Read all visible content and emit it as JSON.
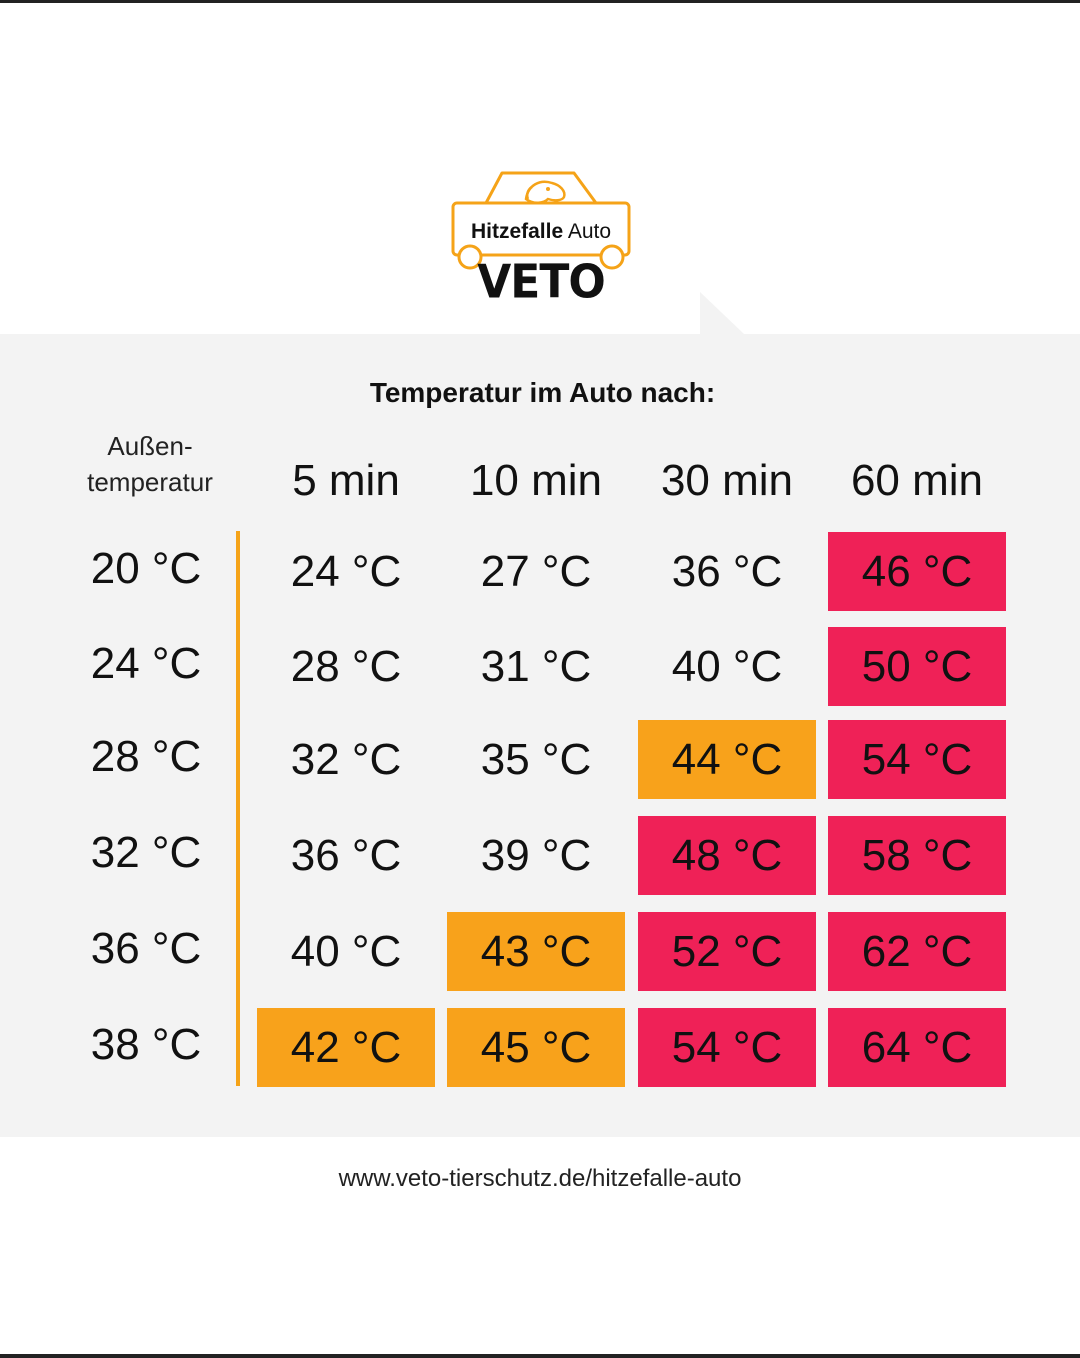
{
  "logo": {
    "line1_bold": "Hitzefalle",
    "line1_regular": "Auto",
    "brand": "VETO",
    "icon": "car-with-dog-icon",
    "accent_color": "#f5a318"
  },
  "table": {
    "title": "Temperatur im Auto nach:",
    "outside_label_line1": "Außen-",
    "outside_label_line2": "temperatur",
    "columns": [
      "5 min",
      "10 min",
      "30 min",
      "60 min"
    ],
    "rows": [
      {
        "outside": "20 °C",
        "values": [
          "24 °C",
          "27 °C",
          "36 °C",
          "46 °C"
        ],
        "levels": [
          "normal",
          "normal",
          "normal",
          "danger"
        ]
      },
      {
        "outside": "24 °C",
        "values": [
          "28 °C",
          "31 °C",
          "40 °C",
          "50 °C"
        ],
        "levels": [
          "normal",
          "normal",
          "normal",
          "danger"
        ]
      },
      {
        "outside": "28 °C",
        "values": [
          "32 °C",
          "35 °C",
          "44 °C",
          "54 °C"
        ],
        "levels": [
          "normal",
          "normal",
          "warn",
          "danger"
        ]
      },
      {
        "outside": "32 °C",
        "values": [
          "36 °C",
          "39 °C",
          "48 °C",
          "58 °C"
        ],
        "levels": [
          "normal",
          "normal",
          "danger",
          "danger"
        ]
      },
      {
        "outside": "36 °C",
        "values": [
          "40 °C",
          "43 °C",
          "52 °C",
          "62 °C"
        ],
        "levels": [
          "normal",
          "warn",
          "danger",
          "danger"
        ]
      },
      {
        "outside": "38 °C",
        "values": [
          "42 °C",
          "45 °C",
          "54 °C",
          "64 °C"
        ],
        "levels": [
          "warn",
          "warn",
          "danger",
          "danger"
        ]
      }
    ],
    "colors": {
      "warn": "#f8a21b",
      "danger": "#ef2157",
      "divider": "#f5a318"
    }
  },
  "footer": {
    "url": "www.veto-tierschutz.de/hitzefalle-auto"
  }
}
